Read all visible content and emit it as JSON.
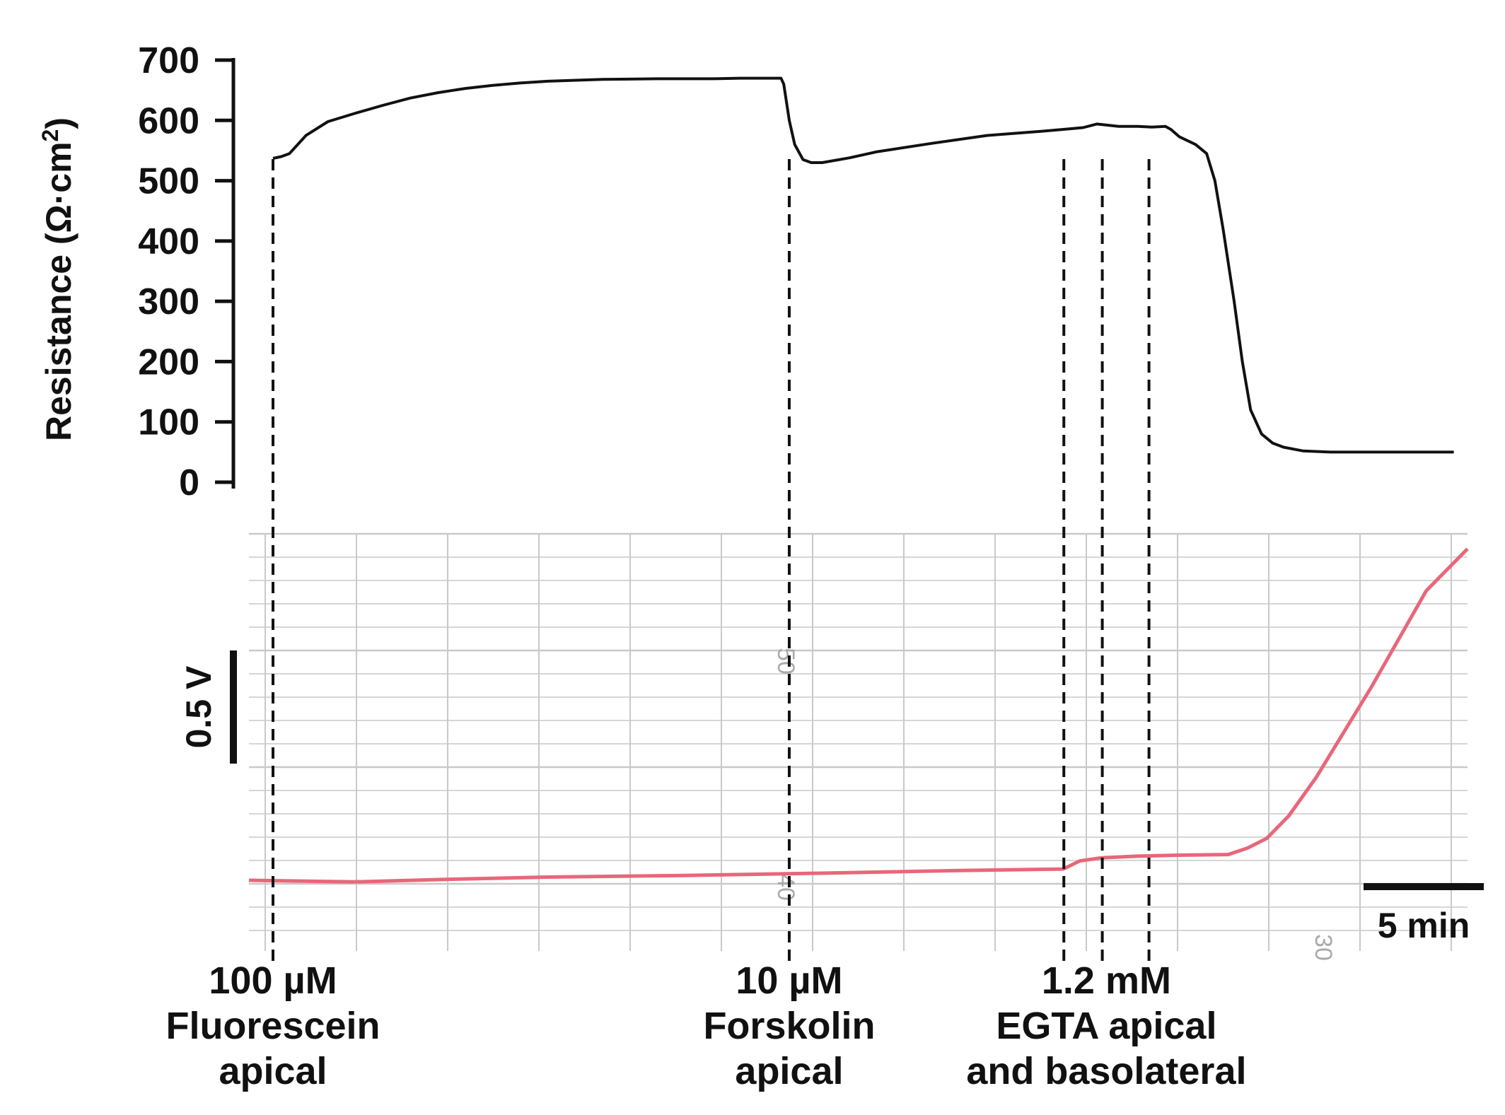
{
  "chart_data": [
    {
      "type": "line",
      "ylabel": "Resistance (Ω·cm²)",
      "ylim": [
        0,
        700
      ],
      "yticks": [
        0,
        100,
        200,
        300,
        400,
        500,
        600,
        700
      ],
      "x_units": "min",
      "xlim": [
        0,
        43.5
      ],
      "series": [
        {
          "color": "#000000",
          "x": [
            0,
            0.3,
            0.6,
            1.2,
            2,
            3,
            4,
            5,
            6,
            7,
            8,
            9,
            10,
            12,
            14,
            16,
            17,
            18,
            18.5,
            18.6,
            18.8,
            19,
            19.3,
            19.6,
            20,
            21,
            22,
            24,
            26,
            28,
            29,
            29.5,
            30,
            30.8,
            31,
            31.5,
            32,
            32.5,
            32.7,
            33,
            33.6,
            34,
            34.3,
            34.6,
            35,
            35.3,
            35.6,
            36,
            36.4,
            36.8,
            37.5,
            38.5,
            40,
            43
          ],
          "y": [
            537,
            540,
            545,
            575,
            598,
            612,
            625,
            637,
            646,
            653,
            658,
            662,
            665,
            668,
            669,
            669,
            670,
            670,
            670,
            660,
            600,
            560,
            535,
            530,
            530,
            538,
            548,
            562,
            575,
            582,
            586,
            588,
            594,
            590,
            590,
            590,
            589,
            590,
            585,
            573,
            560,
            545,
            500,
            420,
            300,
            200,
            120,
            80,
            65,
            58,
            52,
            50,
            50,
            50
          ]
        }
      ],
      "annotations": [
        {
          "lines": [
            "100 µM",
            "Fluorescein",
            "apical"
          ],
          "x": 0
        },
        {
          "lines": [
            "10 µM",
            "Forskolin",
            "apical"
          ],
          "x": 18.8
        },
        {
          "lines": [
            "1.2 mM",
            "EGTA apical",
            "and basolateral"
          ],
          "x": [
            28.8,
            30.2,
            31.9
          ]
        }
      ]
    },
    {
      "type": "line",
      "x_units": "min",
      "xlim": [
        -0.8,
        43.5
      ],
      "ylim": [
        -0.1,
        1.0
      ],
      "y_units": "V (relative)",
      "scale_bars": {
        "y": "0.5 V",
        "x": "5 min"
      },
      "series": [
        {
          "color": "#e8677a",
          "x": [
            -0.8,
            3,
            6,
            10,
            15,
            20,
            25,
            28.8,
            29.4,
            30.2,
            31.5,
            33,
            34.8,
            35.5,
            36.2,
            37,
            38,
            40,
            42,
            43.5
          ],
          "y": [
            0,
            -0.005,
            0.002,
            0.01,
            0.015,
            0.022,
            0.03,
            0.035,
            0.06,
            0.07,
            0.075,
            0.078,
            0.08,
            0.1,
            0.13,
            0.2,
            0.32,
            0.6,
            0.9,
            1.03
          ]
        }
      ],
      "paper_marks": [
        "50",
        "40",
        "30"
      ]
    }
  ]
}
